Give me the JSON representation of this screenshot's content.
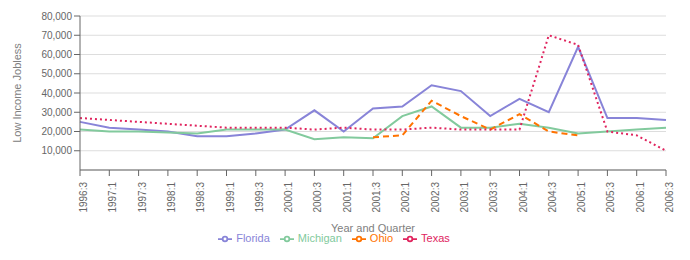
{
  "chart_data": {
    "type": "line",
    "xlabel": "Year and Quarter",
    "ylabel": "Low Income Jobless",
    "categories": [
      "1996:3",
      "1997:1",
      "1997:3",
      "1998:1",
      "1998:3",
      "1999:1",
      "1999:3",
      "2000:1",
      "2000:3",
      "2001:1",
      "2001:3",
      "2002:1",
      "2002:3",
      "2003:1",
      "2003:3",
      "2004:1",
      "2004:3",
      "2005:1",
      "2005:3",
      "2006:1",
      "2006:3"
    ],
    "series": [
      {
        "name": "Florida",
        "color": "#8884d8",
        "line_style": "solid",
        "values": [
          25000,
          22000,
          21000,
          20000,
          17500,
          17500,
          19000,
          21000,
          31000,
          20000,
          32000,
          33000,
          44000,
          41000,
          28000,
          37000,
          30000,
          64000,
          27000,
          27000,
          26000
        ]
      },
      {
        "name": "Michigan",
        "color": "#82ca9d",
        "line_style": "solid",
        "values": [
          21000,
          20000,
          20000,
          19500,
          19000,
          21000,
          21000,
          21000,
          16000,
          17000,
          16500,
          28000,
          33000,
          22000,
          22000,
          24000,
          22000,
          19000,
          20000,
          21000,
          22000
        ]
      },
      {
        "name": "Ohio",
        "color": "#ff7300",
        "line_style": "dashed",
        "values": [
          null,
          null,
          null,
          null,
          null,
          null,
          null,
          null,
          null,
          null,
          17000,
          18000,
          36000,
          28000,
          21000,
          29000,
          20000,
          18000,
          null,
          null,
          null
        ]
      },
      {
        "name": "Texas",
        "color": "#e0245e",
        "line_style": "dotted",
        "values": [
          27000,
          26000,
          25000,
          24000,
          23000,
          22000,
          22000,
          22000,
          21000,
          22000,
          21000,
          21000,
          22000,
          21000,
          21000,
          21000,
          70000,
          65000,
          20000,
          18000,
          10000
        ]
      }
    ],
    "ylim": [
      0,
      80000
    ],
    "yticks": [
      {
        "value": 10000,
        "label": "10,000"
      },
      {
        "value": 20000,
        "label": "20,000"
      },
      {
        "value": 30000,
        "label": "30,000"
      },
      {
        "value": 40000,
        "label": "40,000"
      },
      {
        "value": 50000,
        "label": "50,000"
      },
      {
        "value": 60000,
        "label": "60,000"
      },
      {
        "value": 70000,
        "label": "70,000"
      },
      {
        "value": 80000,
        "label": "80,000"
      }
    ],
    "grid": true,
    "legend": "bottom"
  }
}
